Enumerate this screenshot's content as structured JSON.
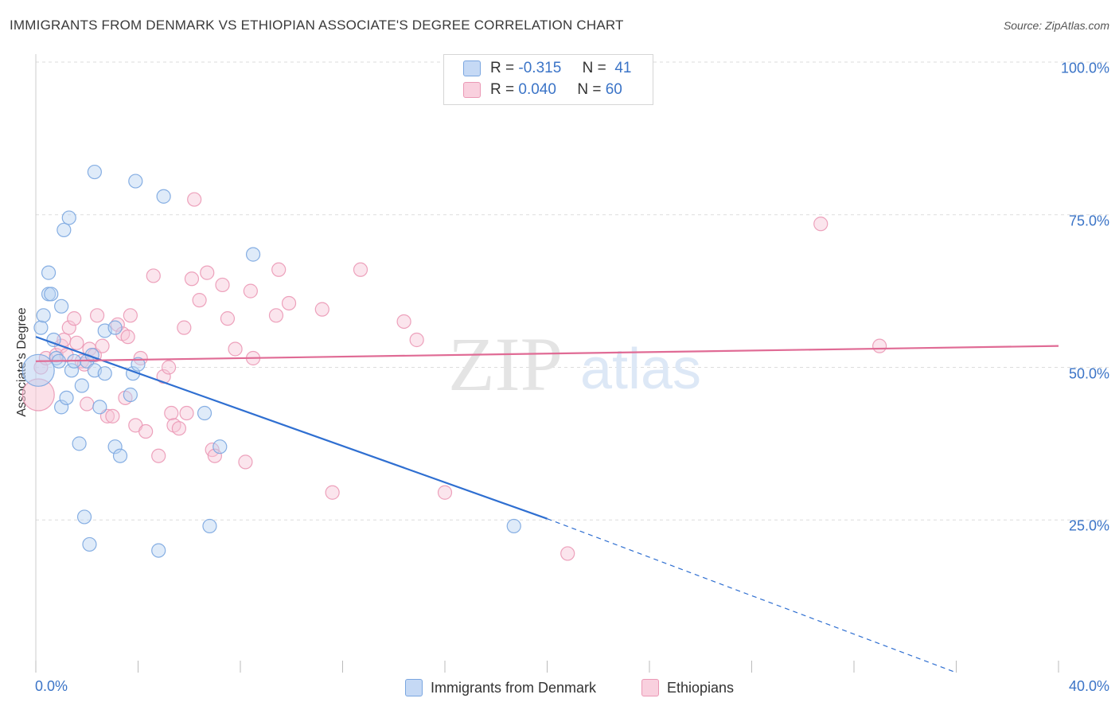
{
  "title": "IMMIGRANTS FROM DENMARK VS ETHIOPIAN ASSOCIATE'S DEGREE CORRELATION CHART",
  "source": "Source: ZipAtlas.com",
  "watermark": {
    "zip": "ZIP",
    "atlas": "atlas"
  },
  "legend": {
    "rows": [
      {
        "r_label": "R =",
        "r_value": "-0.315",
        "n_label": "N =",
        "n_value": "41"
      },
      {
        "r_label": "R =",
        "r_value": "0.040",
        "n_label": "N =",
        "n_value": "60"
      }
    ]
  },
  "colors": {
    "blue_fill": "#b9d2f2",
    "blue_stroke": "#7aa6e0",
    "blue_line": "#2f6fd1",
    "pink_fill": "#f7c6d6",
    "pink_stroke": "#eb98b5",
    "pink_line": "#e06b95",
    "grid": "#dddddd",
    "accent_text": "#3b74c7"
  },
  "chart_data": {
    "type": "scatter",
    "title": "IMMIGRANTS FROM DENMARK VS ETHIOPIAN ASSOCIATE'S DEGREE CORRELATION CHART",
    "xlabel": "",
    "ylabel": "Associate's Degree",
    "xlim": [
      0,
      40
    ],
    "ylim": [
      0,
      100
    ],
    "x_tick_labels": [
      "0.0%",
      "40.0%"
    ],
    "y_tick_labels": [
      "25.0%",
      "50.0%",
      "75.0%",
      "100.0%"
    ],
    "y_ticks": [
      25,
      50,
      75,
      100
    ],
    "grid": true,
    "legend_position": "top-center",
    "series": [
      {
        "name": "Immigrants from Denmark",
        "color": "#b9d2f2",
        "r": -0.315,
        "n": 41,
        "trend": {
          "x": [
            0,
            20
          ],
          "y": [
            55.0,
            25.2
          ],
          "dashed_to": [
            36,
            0
          ]
        },
        "points": [
          [
            0.2,
            56.5
          ],
          [
            0.3,
            58.5
          ],
          [
            0.5,
            62.0
          ],
          [
            0.6,
            62.0
          ],
          [
            0.5,
            65.5
          ],
          [
            0.7,
            54.5
          ],
          [
            0.8,
            51.5
          ],
          [
            0.9,
            51.0
          ],
          [
            1.0,
            60.0
          ],
          [
            1.0,
            43.5
          ],
          [
            1.1,
            72.5
          ],
          [
            1.2,
            45.0
          ],
          [
            1.3,
            74.5
          ],
          [
            1.4,
            49.5
          ],
          [
            1.5,
            51.0
          ],
          [
            1.7,
            37.5
          ],
          [
            1.8,
            47.0
          ],
          [
            1.9,
            25.5
          ],
          [
            2.0,
            51.0
          ],
          [
            2.1,
            21.0
          ],
          [
            2.2,
            52.0
          ],
          [
            2.3,
            49.5
          ],
          [
            2.3,
            82.0
          ],
          [
            2.5,
            43.5
          ],
          [
            2.7,
            49.0
          ],
          [
            2.7,
            56.0
          ],
          [
            3.1,
            37.0
          ],
          [
            3.1,
            56.5
          ],
          [
            3.3,
            35.5
          ],
          [
            3.7,
            45.5
          ],
          [
            3.8,
            49.0
          ],
          [
            3.9,
            80.5
          ],
          [
            4.0,
            50.5
          ],
          [
            4.8,
            20.0
          ],
          [
            5.0,
            78.0
          ],
          [
            6.6,
            42.5
          ],
          [
            6.8,
            24.0
          ],
          [
            7.2,
            37.0
          ],
          [
            8.5,
            68.5
          ],
          [
            18.7,
            24.0
          ],
          [
            0.1,
            49.5
          ]
        ]
      },
      {
        "name": "Ethiopians",
        "color": "#f7c6d6",
        "r": 0.04,
        "n": 60,
        "trend": {
          "x": [
            0,
            40
          ],
          "y": [
            51.0,
            53.5
          ]
        },
        "points": [
          [
            0.1,
            45.5
          ],
          [
            0.2,
            50.0
          ],
          [
            0.4,
            51.5
          ],
          [
            0.8,
            52.0
          ],
          [
            1.0,
            53.5
          ],
          [
            1.1,
            54.5
          ],
          [
            1.3,
            56.5
          ],
          [
            1.5,
            58.0
          ],
          [
            1.6,
            54.0
          ],
          [
            1.8,
            51.0
          ],
          [
            1.9,
            50.5
          ],
          [
            2.0,
            44.0
          ],
          [
            2.1,
            53.0
          ],
          [
            2.3,
            52.0
          ],
          [
            2.4,
            58.5
          ],
          [
            2.6,
            53.5
          ],
          [
            2.8,
            42.0
          ],
          [
            3.0,
            42.0
          ],
          [
            3.2,
            57.0
          ],
          [
            3.4,
            55.5
          ],
          [
            3.5,
            45.0
          ],
          [
            3.6,
            55.0
          ],
          [
            3.7,
            58.5
          ],
          [
            3.9,
            40.5
          ],
          [
            4.1,
            51.5
          ],
          [
            4.3,
            39.5
          ],
          [
            4.6,
            65.0
          ],
          [
            4.8,
            35.5
          ],
          [
            5.0,
            48.5
          ],
          [
            5.2,
            50.0
          ],
          [
            5.3,
            42.5
          ],
          [
            5.4,
            40.5
          ],
          [
            5.6,
            40.0
          ],
          [
            5.8,
            56.5
          ],
          [
            5.9,
            42.5
          ],
          [
            6.1,
            64.5
          ],
          [
            6.2,
            77.5
          ],
          [
            6.4,
            61.0
          ],
          [
            6.7,
            65.5
          ],
          [
            6.9,
            36.5
          ],
          [
            7.0,
            35.5
          ],
          [
            7.3,
            63.5
          ],
          [
            7.5,
            58.0
          ],
          [
            7.8,
            53.0
          ],
          [
            8.2,
            34.5
          ],
          [
            8.4,
            62.5
          ],
          [
            8.5,
            51.5
          ],
          [
            9.4,
            58.5
          ],
          [
            9.5,
            66.0
          ],
          [
            9.9,
            60.5
          ],
          [
            11.2,
            59.5
          ],
          [
            11.6,
            29.5
          ],
          [
            12.7,
            66.0
          ],
          [
            14.4,
            57.5
          ],
          [
            14.9,
            54.5
          ],
          [
            16.0,
            29.5
          ],
          [
            20.8,
            19.5
          ],
          [
            30.7,
            73.5
          ],
          [
            33.0,
            53.5
          ],
          [
            1.2,
            52.0
          ]
        ]
      }
    ]
  }
}
